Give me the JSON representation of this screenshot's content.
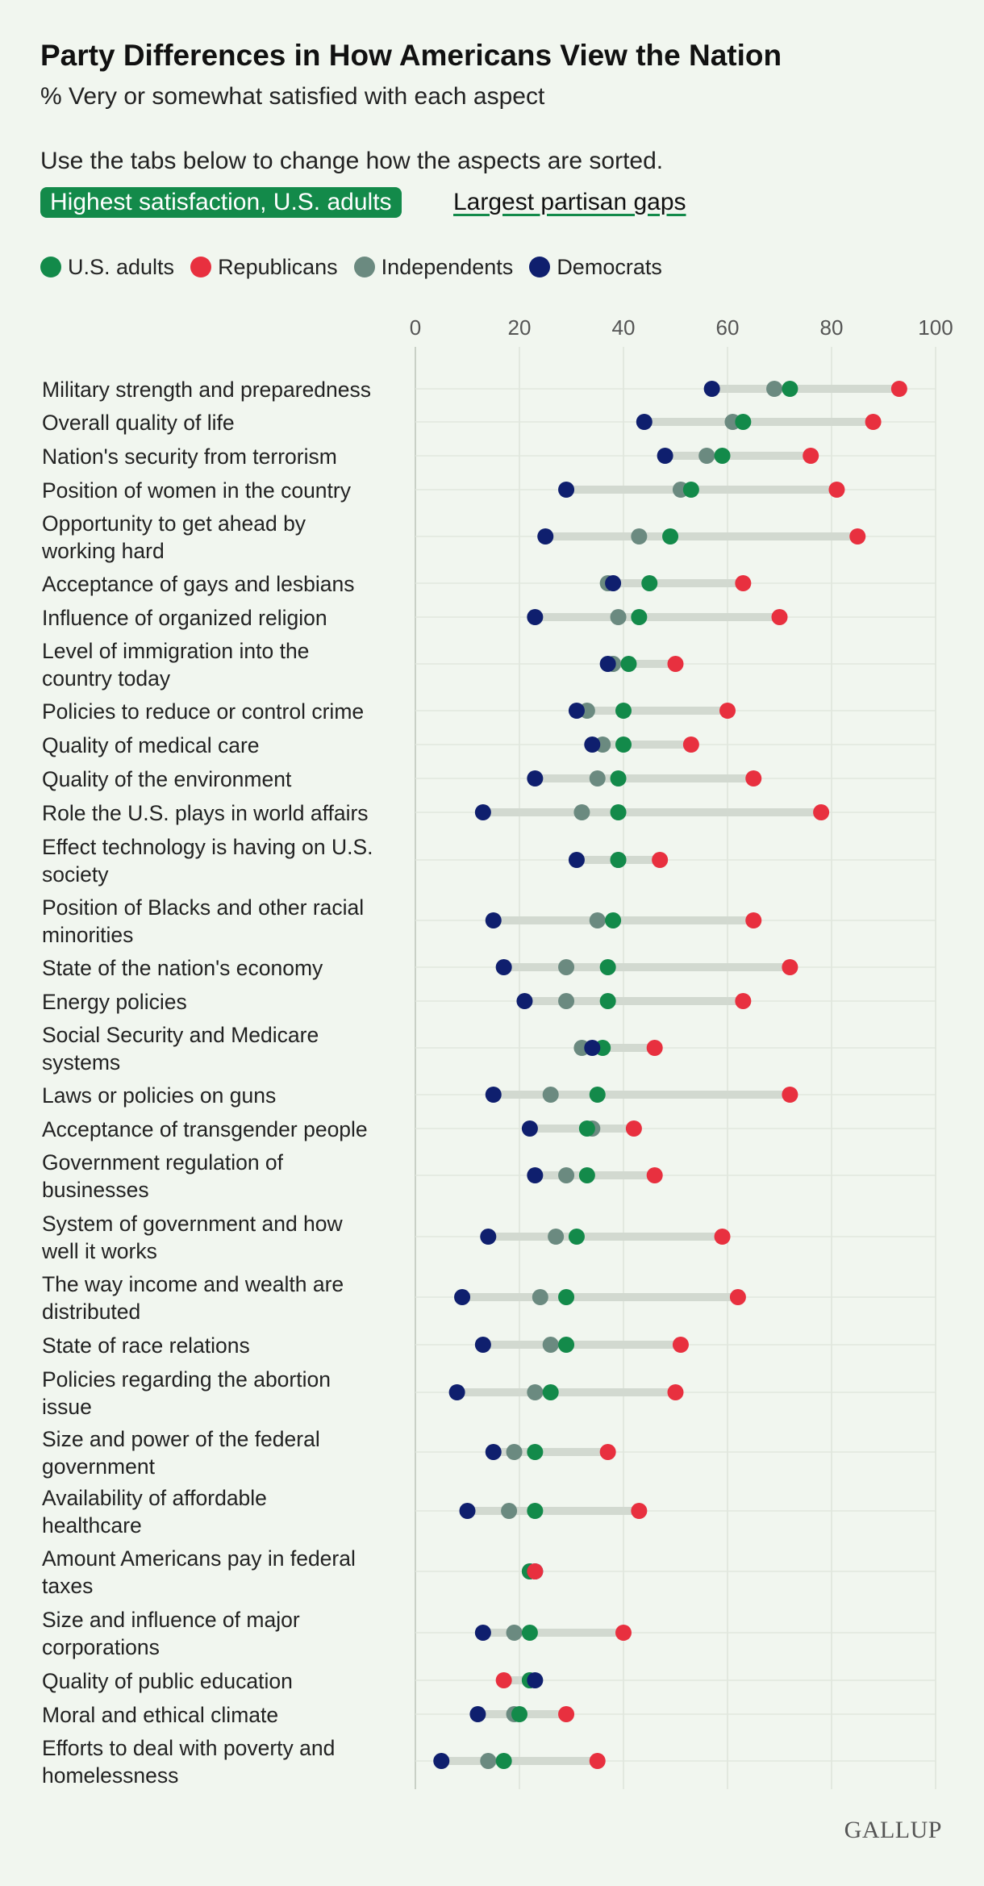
{
  "title": "Party Differences in How Americans View the Nation",
  "subtitle": "% Very or somewhat satisfied with each aspect",
  "instructions": "Use the tabs below to change how the aspects are sorted.",
  "tabs": [
    {
      "label": "Highest satisfaction, U.S. adults",
      "active": true
    },
    {
      "label": "Largest partisan gaps",
      "active": false
    }
  ],
  "legend": [
    {
      "label": "U.S. adults",
      "color": "#138a4a"
    },
    {
      "label": "Republicans",
      "color": "#e8303f"
    },
    {
      "label": "Independents",
      "color": "#6b8a80"
    },
    {
      "label": "Democrats",
      "color": "#0f1f6e"
    }
  ],
  "logo": "GALLUP",
  "chart_data": {
    "type": "dot-plot",
    "title": "Party Differences in How Americans View the Nation",
    "xlim": [
      0,
      100
    ],
    "xticks": [
      0,
      20,
      40,
      60,
      80,
      100
    ],
    "series_order": [
      "adults",
      "republicans",
      "independents",
      "democrats"
    ],
    "colors": {
      "adults": "#138a4a",
      "republicans": "#e8303f",
      "independents": "#6b8a80",
      "democrats": "#0f1f6e"
    },
    "rows": [
      {
        "lines": [
          "Military strength and preparedness"
        ],
        "adults": 72,
        "republicans": 93,
        "independents": 69,
        "democrats": 57
      },
      {
        "lines": [
          "Overall quality of life"
        ],
        "adults": 63,
        "republicans": 88,
        "independents": 61,
        "democrats": 44
      },
      {
        "lines": [
          "Nation's security from terrorism"
        ],
        "adults": 59,
        "republicans": 76,
        "independents": 56,
        "democrats": 48
      },
      {
        "lines": [
          "Position of women in the country"
        ],
        "adults": 53,
        "republicans": 81,
        "independents": 51,
        "democrats": 29
      },
      {
        "lines": [
          "Opportunity to get ahead by",
          "working hard"
        ],
        "adults": 49,
        "republicans": 85,
        "independents": 43,
        "democrats": 25
      },
      {
        "lines": [
          "Acceptance of gays and lesbians"
        ],
        "adults": 45,
        "republicans": 63,
        "independents": 37,
        "democrats": 38
      },
      {
        "lines": [
          "Influence of organized religion"
        ],
        "adults": 43,
        "republicans": 70,
        "independents": 39,
        "democrats": 23
      },
      {
        "lines": [
          "Level of immigration into the",
          "country today"
        ],
        "adults": 41,
        "republicans": 50,
        "independents": 38,
        "democrats": 37
      },
      {
        "lines": [
          "Policies to reduce or control crime"
        ],
        "adults": 40,
        "republicans": 60,
        "independents": 33,
        "democrats": 31
      },
      {
        "lines": [
          "Quality of medical care"
        ],
        "adults": 40,
        "republicans": 53,
        "independents": 36,
        "democrats": 34
      },
      {
        "lines": [
          "Quality of the environment"
        ],
        "adults": 39,
        "republicans": 65,
        "independents": 35,
        "democrats": 23
      },
      {
        "lines": [
          "Role the U.S. plays in world affairs"
        ],
        "adults": 39,
        "republicans": 78,
        "independents": 32,
        "democrats": 13
      },
      {
        "lines": [
          "Effect technology is having on U.S.",
          "society"
        ],
        "adults": 39,
        "republicans": 47,
        "independents": 39,
        "democrats": 31
      },
      {
        "lines": [
          "Position of Blacks and other racial",
          "minorities"
        ],
        "adults": 38,
        "republicans": 65,
        "independents": 35,
        "democrats": 15
      },
      {
        "lines": [
          "State of the nation's economy"
        ],
        "adults": 37,
        "republicans": 72,
        "independents": 29,
        "democrats": 17
      },
      {
        "lines": [
          "Energy policies"
        ],
        "adults": 37,
        "republicans": 63,
        "independents": 29,
        "democrats": 21
      },
      {
        "lines": [
          "Social Security and Medicare",
          "systems"
        ],
        "adults": 36,
        "republicans": 46,
        "independents": 32,
        "democrats": 34
      },
      {
        "lines": [
          "Laws or policies on guns"
        ],
        "adults": 35,
        "republicans": 72,
        "independents": 26,
        "democrats": 15
      },
      {
        "lines": [
          "Acceptance of transgender people"
        ],
        "adults": 33,
        "republicans": 42,
        "independents": 34,
        "democrats": 22
      },
      {
        "lines": [
          "Government regulation of",
          "businesses"
        ],
        "adults": 33,
        "republicans": 46,
        "independents": 29,
        "democrats": 23
      },
      {
        "lines": [
          "System of government and how",
          "well it works"
        ],
        "adults": 31,
        "republicans": 59,
        "independents": 27,
        "democrats": 14
      },
      {
        "lines": [
          "The way income and wealth are",
          "distributed"
        ],
        "adults": 29,
        "republicans": 62,
        "independents": 24,
        "democrats": 9
      },
      {
        "lines": [
          "State of race relations"
        ],
        "adults": 29,
        "republicans": 51,
        "independents": 26,
        "democrats": 13
      },
      {
        "lines": [
          "Policies regarding the abortion",
          "issue"
        ],
        "adults": 26,
        "republicans": 50,
        "independents": 23,
        "democrats": 8
      },
      {
        "lines": [
          "Size and power of the federal",
          "government"
        ],
        "adults": 23,
        "republicans": 37,
        "independents": 19,
        "democrats": 15
      },
      {
        "lines": [
          "Availability of affordable",
          "healthcare"
        ],
        "adults": 23,
        "republicans": 43,
        "independents": 18,
        "democrats": 10
      },
      {
        "lines": [
          "Amount Americans pay in federal",
          "taxes"
        ],
        "adults": 22,
        "republicans": 23,
        "independents": 22,
        "democrats": 23
      },
      {
        "lines": [
          "Size and influence of major",
          "corporations"
        ],
        "adults": 22,
        "republicans": 40,
        "independents": 19,
        "democrats": 13
      },
      {
        "lines": [
          "Quality of public education"
        ],
        "adults": 22,
        "republicans": 17,
        "independents": 22,
        "democrats": 23
      },
      {
        "lines": [
          "Moral and ethical climate"
        ],
        "adults": 20,
        "republicans": 29,
        "independents": 19,
        "democrats": 12
      },
      {
        "lines": [
          "Efforts to deal with poverty and",
          "homelessness"
        ],
        "adults": 17,
        "republicans": 35,
        "independents": 14,
        "democrats": 5
      }
    ]
  }
}
